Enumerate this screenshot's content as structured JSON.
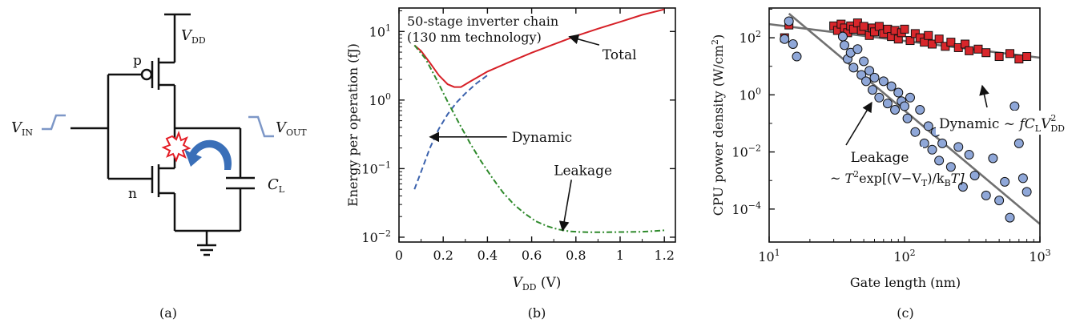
{
  "colors": {
    "total": "#d62027",
    "dynamic": "#3b62ad",
    "leakage": "#2f8a2c",
    "dyn_marker": "#d8262b",
    "leak_marker": "#8fa7d8",
    "fit": "#707070",
    "pulse": "#7d97c7",
    "spark": "#e41e26",
    "arrow": "#3a6fb8"
  },
  "circuit": {
    "vdd": "V",
    "vdd_sub": "DD",
    "vin": "V",
    "vin_sub": "IN",
    "vout": "V",
    "vout_sub": "OUT",
    "cl": "C",
    "cl_sub": "L",
    "p_label": "p",
    "n_label": "n",
    "caption": "(a)",
    "icons": [
      "pmos-transistor-icon",
      "nmos-transistor-icon",
      "ground-icon",
      "capacitor-icon",
      "spark-icon",
      "curved-arrow-icon"
    ]
  },
  "panel_b": {
    "title_line1": "50-stage inverter chain",
    "title_line2": "(130 nm technology)",
    "ylabel": "Energy per operation (fJ)",
    "xlabel": "V",
    "xlabel_sub": "DD",
    "xlabel_unit": " (V)",
    "caption": "(b)",
    "ann_total": "Total",
    "ann_dynamic": "Dynamic",
    "ann_leakage": "Leakage"
  },
  "panel_c": {
    "ylabel": "CPU power density (W/cm",
    "ylabel_sup": "2",
    "ylabel_end": ")",
    "xlabel": "Gate length (nm)",
    "caption": "(c)",
    "dyn_ann_a": "Dynamic ~ ",
    "dyn_ann_f": "fC",
    "dyn_ann_l": "L",
    "dyn_ann_v": "V",
    "dyn_ann_sup": "2",
    "dyn_ann_sub": "DD",
    "leak_ann_line1": "Leakage",
    "leak_ann_a": "~ T",
    "leak_ann_sup": "2",
    "leak_ann_b": "exp[(V−V",
    "leak_ann_sub1": "T",
    "leak_ann_c": ")/k",
    "leak_ann_sub2": "B",
    "leak_ann_d": "T]"
  },
  "chart_data": [
    {
      "type": "line",
      "yscale": "log",
      "xlim": [
        0,
        1.25
      ],
      "ylim": [
        0.0085,
        22
      ],
      "xticks": [
        0,
        0.2,
        0.4,
        0.6,
        0.8,
        1,
        1.2
      ],
      "xtick_labels": [
        "0",
        "0.2",
        "0.4",
        "0.6",
        "0.8",
        "1",
        "1.2"
      ],
      "yticks": [
        0.01,
        0.1,
        1,
        10
      ],
      "ytick_labels": [
        [
          "10",
          "−2"
        ],
        [
          "10",
          "−1"
        ],
        [
          "10",
          "0"
        ],
        [
          "10",
          "1"
        ]
      ],
      "series": [
        {
          "key": "total",
          "style": "solid",
          "x": [
            0.07,
            0.1,
            0.14,
            0.18,
            0.22,
            0.25,
            0.28,
            0.32,
            0.36,
            0.4,
            0.5,
            0.6,
            0.7,
            0.8,
            0.9,
            1.0,
            1.1,
            1.2
          ],
          "y": [
            6.3,
            5.2,
            3.5,
            2.3,
            1.7,
            1.55,
            1.55,
            1.85,
            2.2,
            2.6,
            3.6,
            4.9,
            6.5,
            8.6,
            11.0,
            13.8,
            17.5,
            21.0
          ]
        },
        {
          "key": "dynamic",
          "style": "dashed",
          "x": [
            0.07,
            0.1,
            0.14,
            0.18,
            0.22,
            0.26,
            0.3,
            0.35,
            0.4
          ],
          "y": [
            0.05,
            0.09,
            0.2,
            0.38,
            0.62,
            0.92,
            1.25,
            1.75,
            2.3
          ]
        },
        {
          "key": "leakage",
          "style": "dashdot",
          "x": [
            0.07,
            0.12,
            0.17,
            0.22,
            0.27,
            0.32,
            0.37,
            0.42,
            0.47,
            0.52,
            0.57,
            0.62,
            0.67,
            0.72,
            0.77,
            0.82,
            0.87,
            0.92,
            1.0,
            1.1,
            1.2
          ],
          "y": [
            6.3,
            4.0,
            2.0,
            0.95,
            0.47,
            0.24,
            0.13,
            0.075,
            0.045,
            0.03,
            0.022,
            0.017,
            0.0145,
            0.013,
            0.0122,
            0.0119,
            0.0118,
            0.0118,
            0.0119,
            0.012,
            0.0126
          ]
        }
      ],
      "annotations": [
        {
          "key": "ann_total",
          "x": 0.92,
          "y": 4.6,
          "arrow_to": [
            0.77,
            8.4
          ]
        },
        {
          "key": "ann_dynamic",
          "x": 0.51,
          "y": 0.29,
          "arrow_to": [
            0.14,
            0.29
          ]
        },
        {
          "key": "ann_leakage",
          "x": 0.7,
          "y": 0.095,
          "arrow_to": [
            0.74,
            0.0125
          ]
        }
      ]
    },
    {
      "type": "scatter",
      "xscale": "log",
      "yscale": "log",
      "xlim": [
        10,
        1000
      ],
      "ylim": [
        7e-06,
        1100
      ],
      "xticks": [
        10,
        100,
        1000
      ],
      "xtick_labels": [
        [
          "10",
          "1"
        ],
        [
          "10",
          "2"
        ],
        [
          "10",
          "3"
        ]
      ],
      "yticks": [
        0.0001,
        0.01,
        1,
        100
      ],
      "ytick_labels": [
        [
          "10",
          "−4"
        ],
        [
          "10",
          "−2"
        ],
        [
          "10",
          "0"
        ],
        [
          "10",
          "2"
        ]
      ],
      "series": [
        {
          "key": "dynamic",
          "marker": "square",
          "points": [
            [
              13,
              100
            ],
            [
              14,
              280
            ],
            [
              30,
              260
            ],
            [
              32,
              180
            ],
            [
              34,
              300
            ],
            [
              36,
              220
            ],
            [
              38,
              150
            ],
            [
              40,
              260
            ],
            [
              42,
              200
            ],
            [
              45,
              330
            ],
            [
              48,
              180
            ],
            [
              50,
              250
            ],
            [
              55,
              120
            ],
            [
              58,
              220
            ],
            [
              60,
              160
            ],
            [
              65,
              250
            ],
            [
              70,
              140
            ],
            [
              75,
              200
            ],
            [
              80,
              110
            ],
            [
              85,
              180
            ],
            [
              90,
              90
            ],
            [
              95,
              150
            ],
            [
              100,
              200
            ],
            [
              110,
              80
            ],
            [
              120,
              140
            ],
            [
              130,
              100
            ],
            [
              140,
              70
            ],
            [
              150,
              120
            ],
            [
              160,
              60
            ],
            [
              180,
              90
            ],
            [
              200,
              50
            ],
            [
              220,
              70
            ],
            [
              250,
              45
            ],
            [
              280,
              60
            ],
            [
              300,
              35
            ],
            [
              350,
              40
            ],
            [
              400,
              30
            ],
            [
              500,
              22
            ],
            [
              600,
              28
            ],
            [
              700,
              18
            ],
            [
              800,
              22
            ]
          ]
        },
        {
          "key": "leakage",
          "marker": "circle",
          "points": [
            [
              13,
              90
            ],
            [
              14,
              380
            ],
            [
              15,
              60
            ],
            [
              16,
              22
            ],
            [
              35,
              110
            ],
            [
              36,
              55
            ],
            [
              38,
              18
            ],
            [
              40,
              30
            ],
            [
              42,
              9
            ],
            [
              45,
              40
            ],
            [
              48,
              5
            ],
            [
              50,
              15
            ],
            [
              52,
              3
            ],
            [
              55,
              7
            ],
            [
              58,
              1.5
            ],
            [
              60,
              4
            ],
            [
              65,
              0.8
            ],
            [
              70,
              3
            ],
            [
              75,
              0.5
            ],
            [
              80,
              2
            ],
            [
              85,
              0.3
            ],
            [
              90,
              1.2
            ],
            [
              95,
              0.6
            ],
            [
              100,
              0.4
            ],
            [
              105,
              0.15
            ],
            [
              110,
              0.8
            ],
            [
              120,
              0.05
            ],
            [
              130,
              0.3
            ],
            [
              140,
              0.02
            ],
            [
              150,
              0.08
            ],
            [
              160,
              0.012
            ],
            [
              170,
              0.05
            ],
            [
              180,
              0.005
            ],
            [
              190,
              0.02
            ],
            [
              200,
              0.07
            ],
            [
              220,
              0.003
            ],
            [
              250,
              0.015
            ],
            [
              270,
              0.0006
            ],
            [
              300,
              0.008
            ],
            [
              330,
              0.0015
            ],
            [
              400,
              0.0003
            ],
            [
              450,
              0.006
            ],
            [
              500,
              0.0002
            ],
            [
              550,
              0.0009
            ],
            [
              600,
              5e-05
            ],
            [
              650,
              0.4
            ],
            [
              700,
              0.02
            ],
            [
              750,
              0.0012
            ],
            [
              800,
              0.0004
            ]
          ]
        }
      ],
      "fit_lines": [
        {
          "key": "dynamic_fit",
          "from": [
            10,
            300
          ],
          "to": [
            1000,
            20
          ]
        },
        {
          "key": "leakage_fit",
          "from": [
            14,
            700
          ],
          "to": [
            1000,
            3e-05
          ]
        }
      ]
    }
  ]
}
